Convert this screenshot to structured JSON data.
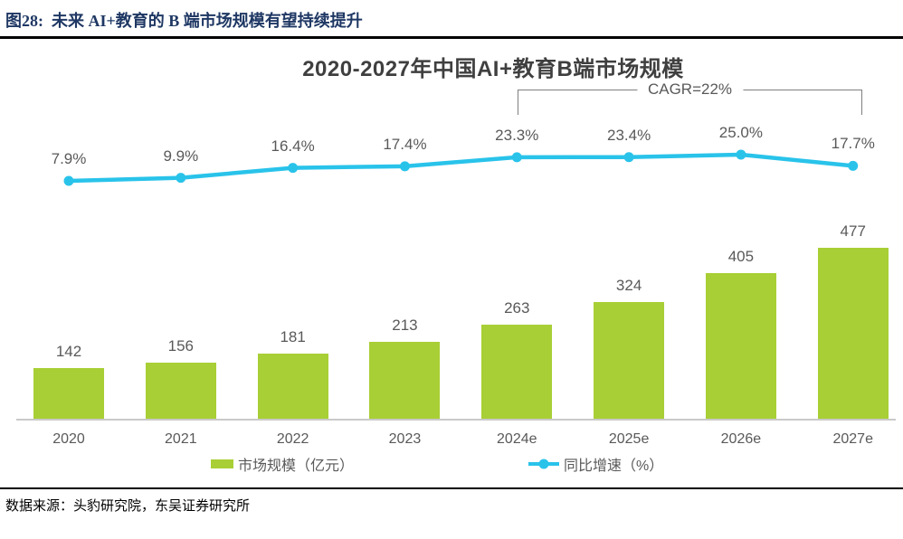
{
  "figure": {
    "caption": "图28:  未来 AI+教育的 B 端市场规模有望持续提升",
    "source": "数据来源：头豹研究院，东吴证券研究所"
  },
  "chart_data": {
    "type": "bar+line",
    "title": "2020-2027年中国AI+教育B端市场规模",
    "categories": [
      "2020",
      "2021",
      "2022",
      "2023",
      "2024e",
      "2025e",
      "2026e",
      "2027e"
    ],
    "series": [
      {
        "name": "市场规模（亿元）",
        "type": "bar",
        "color": "#a8cf35",
        "values": [
          142,
          156,
          181,
          213,
          263,
          324,
          405,
          477
        ]
      },
      {
        "name": "同比增速（%）",
        "type": "line",
        "color": "#29c3ea",
        "values": [
          7.9,
          9.9,
          16.4,
          17.4,
          23.3,
          23.4,
          25.0,
          17.7
        ],
        "point_labels": [
          "7.9%",
          "9.9%",
          "16.4%",
          "17.4%",
          "23.3%",
          "23.4%",
          "25.0%",
          "17.7%"
        ]
      }
    ],
    "annotation": {
      "text": "CAGR=22%",
      "from": "2024e",
      "to": "2027e"
    },
    "legend_position": "bottom",
    "grid": false,
    "value_axis_visible": false
  },
  "colors": {
    "caption_navy": "#1f3864",
    "label_gray": "#595959",
    "bracket_gray": "#7f7f7f",
    "axis_gray": "#c9c9c9",
    "rule_black": "#000000"
  }
}
